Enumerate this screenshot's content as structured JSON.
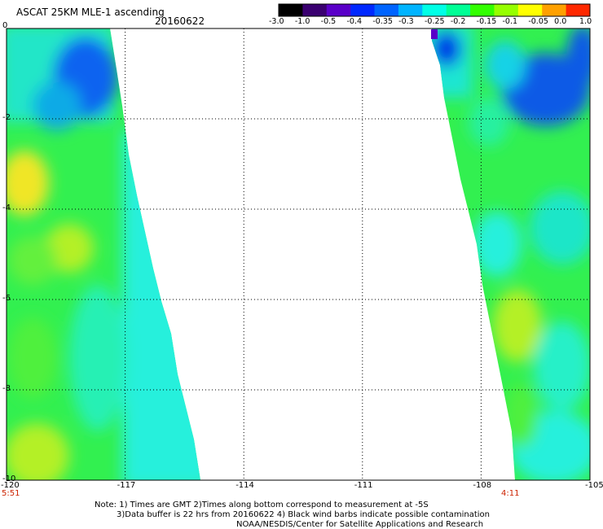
{
  "header": {
    "title": "ASCAT 25KM MLE-1 ascending",
    "date": "20160622"
  },
  "colorbar": {
    "labels": [
      "-3.0",
      "-1.0",
      "-0.5",
      "-0.4",
      "-0.35",
      "-0.3",
      "-0.25",
      "-0.2",
      "-0.15",
      "-0.1",
      "-0.05",
      "0.0",
      "1.0"
    ],
    "colors": [
      "#000000",
      "#3a0070",
      "#5a00c8",
      "#0028ff",
      "#0064ff",
      "#00b4ff",
      "#00ffe6",
      "#00ff96",
      "#32ff00",
      "#96ff00",
      "#ffff00",
      "#ffa000",
      "#ff2800"
    ]
  },
  "axes": {
    "x_ticks": [
      "-120",
      "-117",
      "-114",
      "-111",
      "-108",
      "-105"
    ],
    "y_ticks": [
      "0",
      "-2",
      "-4",
      "-6",
      "-8",
      "-10"
    ],
    "xlim": [
      -120,
      -105
    ],
    "ylim": [
      -10,
      0
    ]
  },
  "times": {
    "left": "5:51",
    "right": "4:11"
  },
  "notes": {
    "line1": "Note: 1) Times are GMT 2)Times along bottom correspond to measurement at -5S",
    "line2": "3)Data buffer is 22 hrs from 20160622 4) Black wind barbs indicate possible contamination",
    "line3": "NOAA/NESDIS/Center for Satellite Applications and Research"
  }
}
